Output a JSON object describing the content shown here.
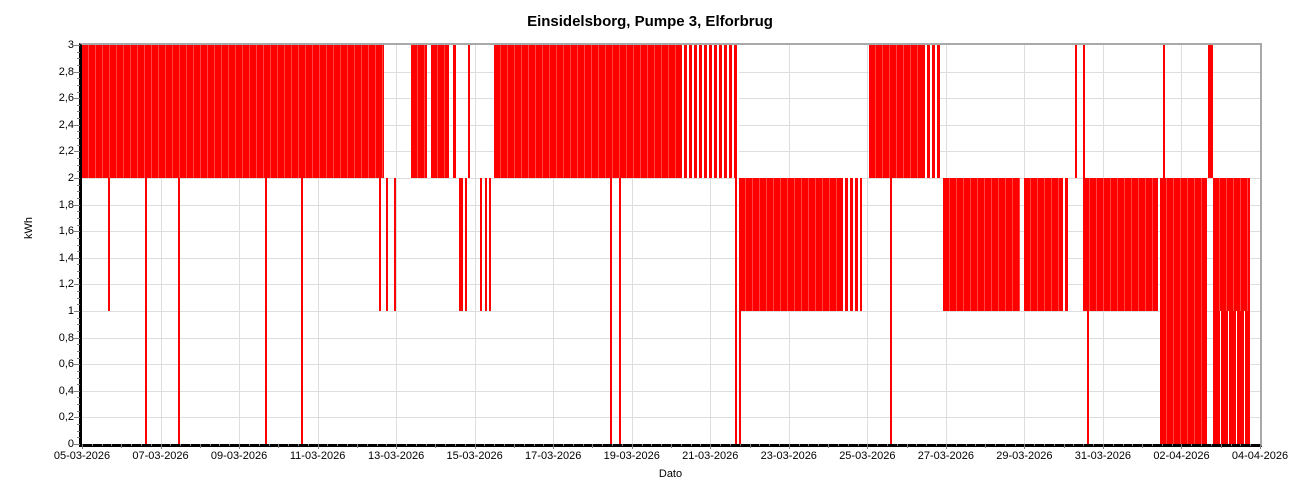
{
  "chart_data": {
    "type": "line",
    "title": "Einsidelsborg, Pumpe 3, Elforbrug",
    "xlabel": "Dato",
    "ylabel": "kWh",
    "grid": "on",
    "legend": "none",
    "series_color": "#ff0000",
    "grid_color": "#dedede",
    "axis_color": "#000000",
    "frame_color": "#a9a9a9",
    "tick_color": "#808080",
    "ylim": [
      0,
      3
    ],
    "y_tick_step": 0.2,
    "y_tick_labels": [
      "0",
      "0,2",
      "0,4",
      "0,6",
      "0,8",
      "1",
      "1,2",
      "1,4",
      "1,6",
      "1,8",
      "2",
      "2,2",
      "2,4",
      "2,6",
      "2,8",
      "3"
    ],
    "x_days_total": 30,
    "x_tick_interval_days": 2,
    "x_start_date": "05-03-2026",
    "x_end_date": "04-04-2026",
    "x_tick_labels": [
      "05-03-2026",
      "07-03-2026",
      "09-03-2026",
      "11-03-2026",
      "13-03-2026",
      "15-03-2026",
      "17-03-2026",
      "19-03-2026",
      "21-03-2026",
      "23-03-2026",
      "25-03-2026",
      "27-03-2026",
      "29-03-2026",
      "31-03-2026",
      "02-04-2026",
      "04-04-2026"
    ],
    "band_segments": [
      {
        "start_day": 0.0,
        "end_day": 7.68,
        "low": 2,
        "high": 3,
        "fill": "dense"
      },
      {
        "start_day": 8.37,
        "end_day": 8.78,
        "low": 2,
        "high": 3,
        "fill": "dense"
      },
      {
        "start_day": 8.9,
        "end_day": 9.34,
        "low": 2,
        "high": 3,
        "fill": "dense"
      },
      {
        "start_day": 9.46,
        "end_day": 9.52,
        "low": 2,
        "high": 3,
        "fill": "dense"
      },
      {
        "start_day": 9.82,
        "end_day": 9.88,
        "low": 2,
        "high": 3,
        "fill": "dense"
      },
      {
        "start_day": 10.48,
        "end_day": 15.2,
        "low": 2,
        "high": 3,
        "fill": "dense"
      },
      {
        "start_day": 15.2,
        "end_day": 16.72,
        "low": 2,
        "high": 3,
        "fill": "striped"
      },
      {
        "start_day": 16.74,
        "end_day": 19.3,
        "low": 1,
        "high": 2,
        "fill": "dense"
      },
      {
        "start_day": 19.3,
        "end_day": 19.87,
        "low": 1,
        "high": 2,
        "fill": "striped"
      },
      {
        "start_day": 20.03,
        "end_day": 21.38,
        "low": 2,
        "high": 3,
        "fill": "dense"
      },
      {
        "start_day": 21.38,
        "end_day": 21.86,
        "low": 2,
        "high": 3,
        "fill": "striped"
      },
      {
        "start_day": 21.92,
        "end_day": 23.88,
        "low": 1,
        "high": 2,
        "fill": "dense"
      },
      {
        "start_day": 23.98,
        "end_day": 24.9,
        "low": 1,
        "high": 2,
        "fill": "dense"
      },
      {
        "start_day": 24.9,
        "end_day": 25.1,
        "low": 1,
        "high": 2,
        "fill": "striped"
      },
      {
        "start_day": 25.28,
        "end_day": 25.34,
        "low": 2,
        "high": 3,
        "fill": "dense"
      },
      {
        "start_day": 25.48,
        "end_day": 25.54,
        "low": 2,
        "high": 3,
        "fill": "dense"
      },
      {
        "start_day": 25.48,
        "end_day": 27.4,
        "low": 1,
        "high": 2,
        "fill": "dense"
      },
      {
        "start_day": 27.45,
        "end_day": 28.65,
        "low": 0,
        "high": 2,
        "fill": "dense"
      },
      {
        "start_day": 27.52,
        "end_day": 27.57,
        "low": 2,
        "high": 3,
        "fill": "dense"
      },
      {
        "start_day": 28.68,
        "end_day": 28.8,
        "low": 2,
        "high": 3,
        "fill": "dense"
      },
      {
        "start_day": 28.8,
        "end_day": 29.75,
        "low": 1,
        "high": 2,
        "fill": "dense"
      },
      {
        "start_day": 28.8,
        "end_day": 29.75,
        "low": 0,
        "high": 1,
        "fill": "mixed"
      }
    ],
    "spikes": [
      {
        "day": 0.69,
        "from": 2,
        "to": 1
      },
      {
        "day": 1.63,
        "from": 2,
        "to": 0
      },
      {
        "day": 2.47,
        "from": 2,
        "to": 0
      },
      {
        "day": 4.69,
        "from": 2,
        "to": 0
      },
      {
        "day": 5.61,
        "from": 2,
        "to": 0
      },
      {
        "day": 7.6,
        "from": 2,
        "to": 1
      },
      {
        "day": 7.76,
        "from": 2,
        "to": 1
      },
      {
        "day": 7.98,
        "from": 2,
        "to": 1
      },
      {
        "day": 9.62,
        "from": 2,
        "to": 1
      },
      {
        "day": 9.69,
        "from": 2,
        "to": 1
      },
      {
        "day": 9.77,
        "from": 2,
        "to": 1
      },
      {
        "day": 10.15,
        "from": 2,
        "to": 1
      },
      {
        "day": 10.28,
        "from": 2,
        "to": 1
      },
      {
        "day": 10.4,
        "from": 2,
        "to": 1
      },
      {
        "day": 13.47,
        "from": 2,
        "to": 0
      },
      {
        "day": 13.7,
        "from": 2,
        "to": 0
      },
      {
        "day": 16.66,
        "from": 2,
        "to": 0
      },
      {
        "day": 16.76,
        "from": 2,
        "to": 0
      },
      {
        "day": 20.6,
        "from": 2,
        "to": 0
      },
      {
        "day": 25.61,
        "from": 1,
        "to": 0
      }
    ]
  }
}
